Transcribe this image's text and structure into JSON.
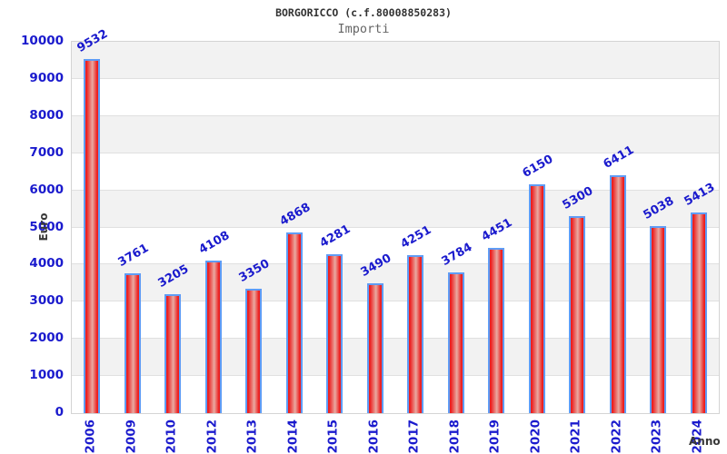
{
  "header": {
    "title": "BORGORICCO (c.f.80008850283)",
    "subtitle": "Importi"
  },
  "chart_data": {
    "type": "bar",
    "title": "BORGORICCO (c.f.80008850283)",
    "subtitle": "Importi",
    "xlabel": "Anno",
    "ylabel": "Euro",
    "categories": [
      "2006",
      "2009",
      "2010",
      "2012",
      "2013",
      "2014",
      "2015",
      "2016",
      "2017",
      "2018",
      "2019",
      "2020",
      "2021",
      "2022",
      "2023",
      "2024"
    ],
    "values": [
      9532,
      3761,
      3205,
      4108,
      3350,
      4868,
      4281,
      3490,
      4251,
      3784,
      4451,
      6150,
      5300,
      6411,
      5038,
      5413
    ],
    "ylim": [
      0,
      10000
    ],
    "ytick_step": 1000,
    "grid": "horizontal-bands-alternating",
    "legend": "none",
    "colors": {
      "tick_label": "#1a1acd",
      "value_label": "#1a1acd",
      "bar_edge_red": "#ec1e1e",
      "bar_center_red": "#e9aaa1",
      "bar_border_blue": "#5f9cf5",
      "band_gray": "#f2f2f2",
      "gridline": "#e0e0e0",
      "title_color": "#333333",
      "subtitle_color": "#666666",
      "axis_title_color": "#383838"
    }
  }
}
